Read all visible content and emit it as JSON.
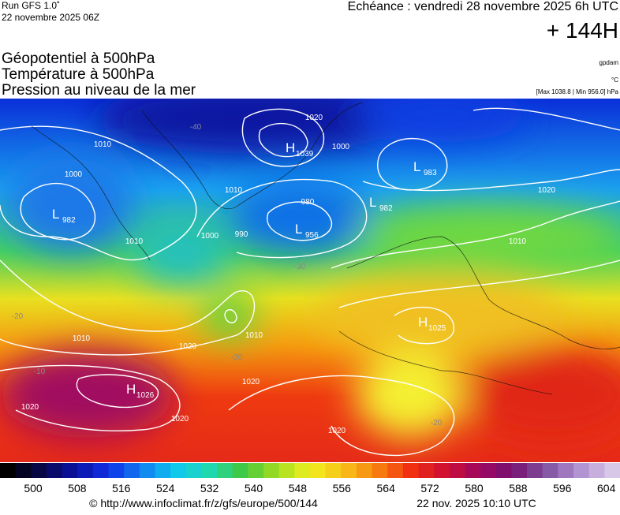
{
  "header": {
    "run": "Run GFS 1.0˚",
    "run_date": "22 novembre 2025 06Z",
    "valid": "Echéance : vendredi 28 novembre 2025 6h UTC",
    "lead": "+ 144H"
  },
  "titles": [
    "Géopotentiel à 500hPa",
    "Température à 500hPa",
    "Pression au niveau de la mer"
  ],
  "units": [
    "gpdam",
    "°C",
    "[Max 1038.8 | Min 956.0] hPa"
  ],
  "centers": [
    {
      "letter": "H",
      "value": 1039
    },
    {
      "letter": "L",
      "value": 983
    },
    {
      "letter": "L",
      "value": 982
    },
    {
      "letter": "L",
      "value": 956
    },
    {
      "letter": "L",
      "value": 982
    },
    {
      "letter": "H",
      "value": 1026
    },
    {
      "letter": "H",
      "value": 1025
    }
  ],
  "isobar_labels": [
    1010,
    1000,
    1020,
    1000,
    1010,
    990,
    980,
    1000,
    1020,
    1010,
    1010,
    1010,
    1020,
    1020,
    1020,
    1020,
    1020,
    1010
  ],
  "temperature_labels": [
    -40,
    -30,
    -20,
    -20,
    -20,
    -10
  ],
  "colorbar_labels": [
    500,
    508,
    516,
    524,
    532,
    540,
    548,
    556,
    564,
    572,
    580,
    588,
    596,
    604
  ],
  "footer": {
    "source": "© http://www.infoclimat.fr/z/gfs/europe/500/144",
    "generated": "22 nov. 2025 10:10 UTC"
  }
}
